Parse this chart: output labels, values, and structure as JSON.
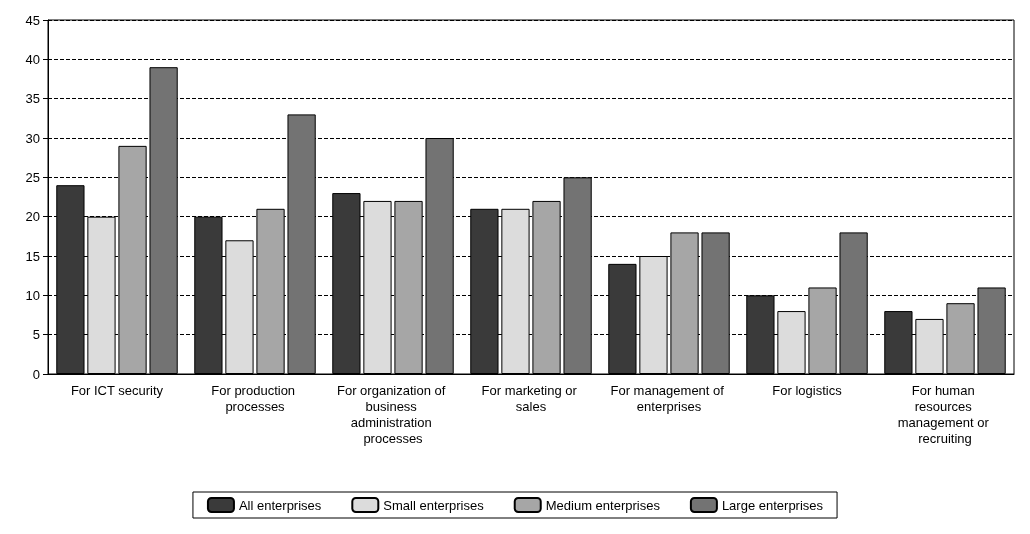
{
  "chart_data": {
    "type": "bar",
    "categories": [
      "For ICT security",
      "For production processes",
      "For organization of business administration processes",
      "For marketing or sales",
      "For management of enterprises",
      "For logistics",
      "For human resources management or recruiting"
    ],
    "series": [
      {
        "name": "All enterprises",
        "color": "#3a3a3a",
        "values": [
          24,
          20,
          23,
          21,
          14,
          10,
          8
        ]
      },
      {
        "name": "Small enterprises",
        "color": "#dcdcdc",
        "values": [
          20,
          17,
          22,
          21,
          15,
          8,
          7
        ]
      },
      {
        "name": "Medium enterprises",
        "color": "#a6a6a6",
        "values": [
          29,
          21,
          22,
          22,
          18,
          11,
          9
        ]
      },
      {
        "name": "Large enterprises",
        "color": "#737373",
        "values": [
          39,
          33,
          30,
          25,
          18,
          18,
          11
        ]
      }
    ],
    "ylim": [
      0,
      45
    ],
    "yticks": [
      0,
      5,
      10,
      15,
      20,
      25,
      30,
      35,
      40,
      45
    ],
    "grid": "y",
    "legend": "bottom"
  }
}
